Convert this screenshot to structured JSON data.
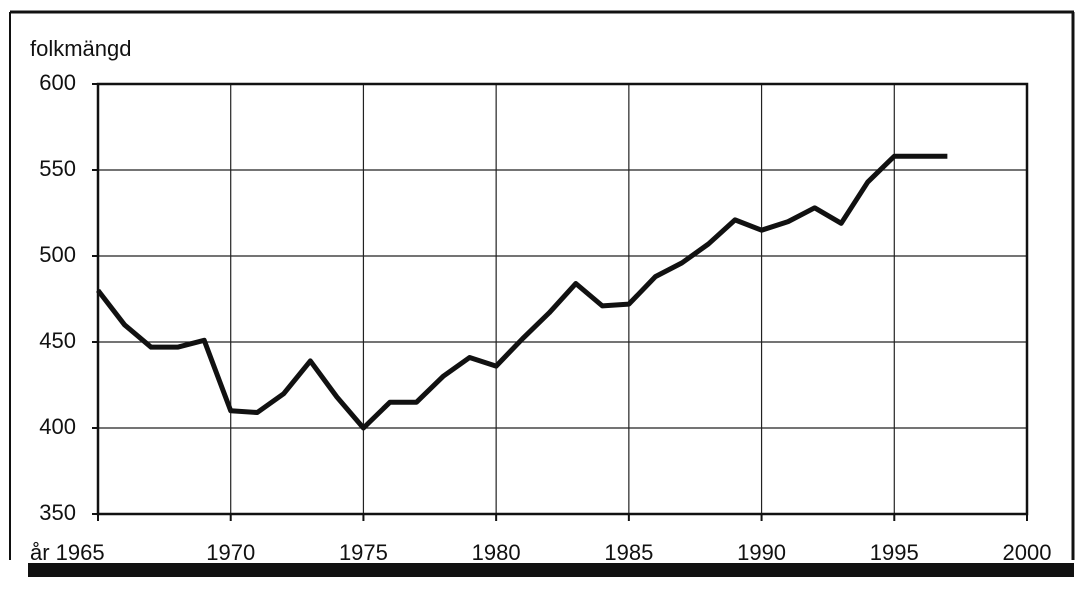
{
  "chart_data": {
    "type": "line",
    "y_label": "folkmängd",
    "x": [
      1965,
      1966,
      1967,
      1968,
      1969,
      1970,
      1971,
      1972,
      1973,
      1974,
      1975,
      1976,
      1977,
      1978,
      1979,
      1980,
      1981,
      1982,
      1983,
      1984,
      1985,
      1986,
      1987,
      1988,
      1989,
      1990,
      1991,
      1992,
      1993,
      1994,
      1995,
      1996,
      1997
    ],
    "series": [
      {
        "color": "#111111",
        "values": [
          480,
          460,
          447,
          447,
          451,
          410,
          409,
          420,
          439,
          418,
          400,
          415,
          415,
          430,
          441,
          436,
          452,
          467,
          484,
          471,
          472,
          488,
          496,
          507,
          521,
          515,
          520,
          528,
          519,
          543,
          558,
          558,
          558
        ]
      }
    ],
    "xlim": [
      1965,
      2000
    ],
    "xticks": [
      {
        "value": 1965,
        "label": "år 1965"
      },
      1970,
      1975,
      1980,
      1985,
      1990,
      1995,
      2000
    ],
    "ylim": [
      350,
      600
    ],
    "yticks": [
      350,
      400,
      450,
      500,
      550,
      600
    ],
    "grid": true
  }
}
